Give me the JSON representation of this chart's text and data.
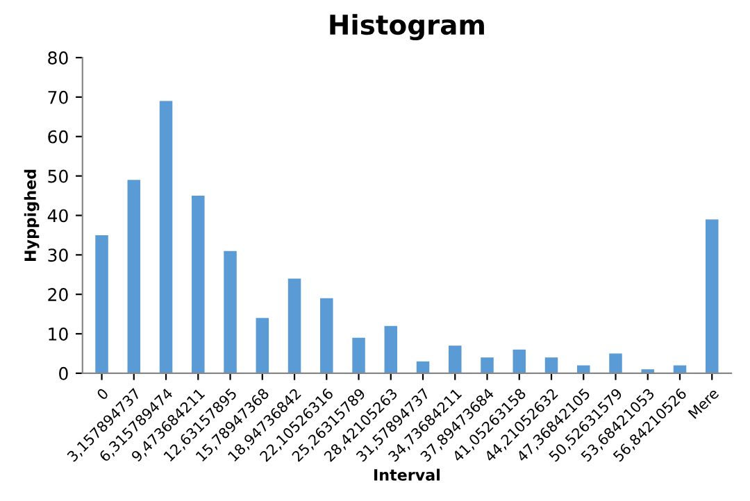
{
  "chart_data": {
    "type": "bar",
    "title": "Histogram",
    "xlabel": "Interval",
    "ylabel": "Hyppighed",
    "categories": [
      "0",
      "3,157894737",
      "6,315789474",
      "9,473684211",
      "12,63157895",
      "15,78947368",
      "18,94736842",
      "22,10526316",
      "25,26315789",
      "28,42105263",
      "31,57894737",
      "34,73684211",
      "37,89473684",
      "41,05263158",
      "44,21052632",
      "47,36842105",
      "50,52631579",
      "53,68421053",
      "56,84210526",
      "Mere"
    ],
    "values": [
      35,
      49,
      69,
      45,
      31,
      14,
      24,
      19,
      9,
      12,
      3,
      7,
      4,
      6,
      4,
      2,
      5,
      1,
      2,
      39
    ],
    "color": "#5b9bd5",
    "ylim": [
      0,
      80
    ],
    "yticks": [
      0,
      10,
      20,
      30,
      40,
      50,
      60,
      70,
      80
    ],
    "grid": false,
    "legend": false
  }
}
